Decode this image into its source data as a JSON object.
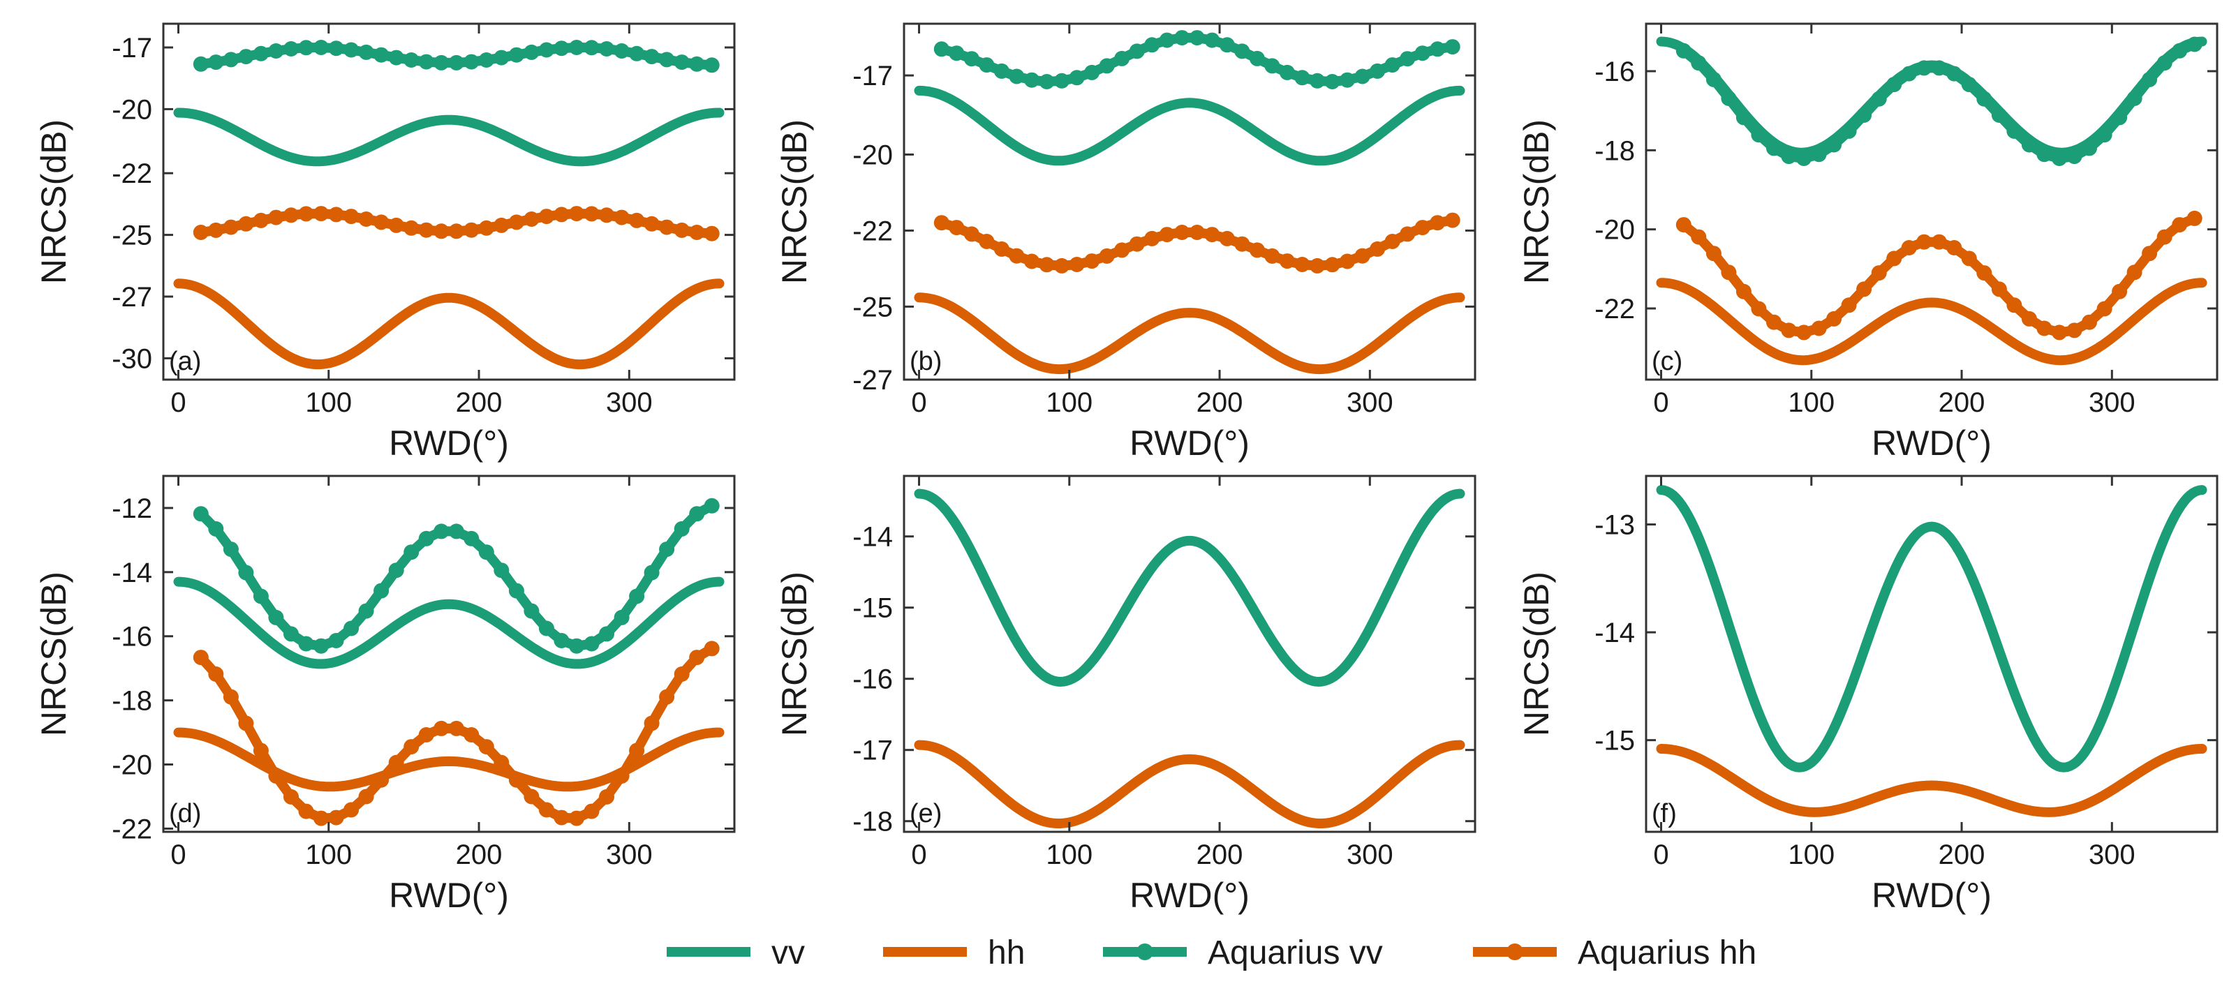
{
  "colors": {
    "vv": "#1b9e77",
    "hh": "#d95f02",
    "axis": "#333333"
  },
  "legend": [
    {
      "key": "vv",
      "label": "vv",
      "markers": false
    },
    {
      "key": "hh",
      "label": "hh",
      "markers": false
    },
    {
      "key": "aq_vv",
      "label": "Aquarius vv",
      "markers": true
    },
    {
      "key": "aq_hh",
      "label": "Aquarius hh",
      "markers": true
    }
  ],
  "chart_data": [
    {
      "id": "a",
      "type": "line",
      "panel_label": "(a)",
      "xlabel": "RWD(°)",
      "ylabel": "NRCS(dB)",
      "xlim": [
        -10,
        370
      ],
      "xticks": [
        0,
        100,
        200,
        300
      ],
      "ylim": [
        -31.0,
        -16.0
      ],
      "yticks": [
        {
          "value": -17.0,
          "label": "-17"
        },
        {
          "value": -19.6,
          "label": "-20"
        },
        {
          "value": -22.3,
          "label": "-22"
        },
        {
          "value": -24.9,
          "label": "-25"
        },
        {
          "value": -27.5,
          "label": "-27"
        },
        {
          "value": -30.1,
          "label": "-30"
        }
      ],
      "series": [
        {
          "name": "vv",
          "key": "vv",
          "markers": false,
          "model": {
            "a0": -20.85,
            "a1": 0.15,
            "a2": 0.95
          }
        },
        {
          "name": "hh",
          "key": "hh",
          "markers": false,
          "model": {
            "a0": -28.8,
            "a1": 0.3,
            "a2": 1.55
          }
        },
        {
          "name": "Aquarius vv",
          "key": "aq_vv",
          "markers": true,
          "x_range": [
            15,
            355
          ],
          "n": 35,
          "model": {
            "a0": -17.35,
            "a1": -0.05,
            "a2": -0.35
          }
        },
        {
          "name": "Aquarius hh",
          "key": "aq_hh",
          "markers": true,
          "x_range": [
            15,
            355
          ],
          "n": 35,
          "model": {
            "a0": -24.4,
            "a1": -0.05,
            "a2": -0.4
          }
        }
      ]
    },
    {
      "id": "b",
      "type": "line",
      "panel_label": "(b)",
      "xlabel": "RWD(°)",
      "ylabel": "NRCS(dB)",
      "xlim": [
        -10,
        370
      ],
      "xticks": [
        0,
        100,
        200,
        300
      ],
      "ylim": [
        -27.0,
        -15.3
      ],
      "yticks": [
        {
          "value": -17.0,
          "label": "-17"
        },
        {
          "value": -19.6,
          "label": "-20"
        },
        {
          "value": -22.1,
          "label": "-22"
        },
        {
          "value": -24.6,
          "label": "-25"
        },
        {
          "value": -27.0,
          "label": "-27"
        }
      ],
      "series": [
        {
          "name": "vv",
          "key": "vv",
          "markers": false,
          "model": {
            "a0": -18.75,
            "a1": 0.2,
            "a2": 1.05
          }
        },
        {
          "name": "hh",
          "key": "hh",
          "markers": false,
          "model": {
            "a0": -25.6,
            "a1": 0.25,
            "a2": 1.05
          }
        },
        {
          "name": "Aquarius vv",
          "key": "aq_vv",
          "markers": true,
          "x_range": [
            15,
            355
          ],
          "n": 35,
          "model": {
            "a0": -16.55,
            "a1": -0.15,
            "a2": 0.65
          }
        },
        {
          "name": "Aquarius hh",
          "key": "aq_hh",
          "markers": true,
          "x_range": [
            15,
            355
          ],
          "n": 35,
          "model": {
            "a0": -22.6,
            "a1": 0.2,
            "a2": 0.65
          }
        }
      ]
    },
    {
      "id": "c",
      "type": "line",
      "panel_label": "(c)",
      "xlabel": "RWD(°)",
      "ylabel": "NRCS(dB)",
      "xlim": [
        -10,
        370
      ],
      "xticks": [
        0,
        100,
        200,
        300
      ],
      "ylim": [
        -23.8,
        -14.8
      ],
      "yticks": [
        {
          "value": -16,
          "label": "-16"
        },
        {
          "value": -18,
          "label": "-18"
        },
        {
          "value": -20,
          "label": "-20"
        },
        {
          "value": -22,
          "label": "-22"
        }
      ],
      "series": [
        {
          "name": "vv",
          "key": "vv",
          "markers": false,
          "model": {
            "a0": -16.8,
            "a1": 0.3,
            "a2": 1.25
          }
        },
        {
          "name": "hh",
          "key": "hh",
          "markers": false,
          "model": {
            "a0": -22.45,
            "a1": 0.25,
            "a2": 0.85
          }
        },
        {
          "name": "Aquarius vv",
          "key": "aq_vv",
          "markers": true,
          "x_range": [
            15,
            355
          ],
          "n": 35,
          "model": {
            "a0": -16.9,
            "a1": 0.3,
            "a2": 1.3
          }
        },
        {
          "name": "Aquarius hh",
          "key": "aq_hh",
          "markers": true,
          "x_range": [
            15,
            355
          ],
          "n": 35,
          "model": {
            "a0": -21.3,
            "a1": 0.3,
            "a2": 1.3
          }
        }
      ]
    },
    {
      "id": "d",
      "type": "line",
      "panel_label": "(d)",
      "xlabel": "RWD(°)",
      "ylabel": "NRCS(dB)",
      "xlim": [
        -10,
        370
      ],
      "xticks": [
        0,
        100,
        200,
        300
      ],
      "ylim": [
        -22.1,
        -11.0
      ],
      "yticks": [
        {
          "value": -12,
          "label": "-12"
        },
        {
          "value": -14,
          "label": "-14"
        },
        {
          "value": -16,
          "label": "-16"
        },
        {
          "value": -18,
          "label": "-18"
        },
        {
          "value": -20,
          "label": "-20"
        },
        {
          "value": -22,
          "label": "-22"
        }
      ],
      "series": [
        {
          "name": "vv",
          "key": "vv",
          "markers": false,
          "model": {
            "a0": -15.75,
            "a1": 0.35,
            "a2": 1.1
          }
        },
        {
          "name": "hh",
          "key": "hh",
          "markers": false,
          "model": {
            "a0": -20.05,
            "a1": 0.45,
            "a2": 0.6
          }
        },
        {
          "name": "Aquarius vv",
          "key": "aq_vv",
          "markers": true,
          "x_range": [
            15,
            355
          ],
          "n": 35,
          "model": {
            "a0": -14.3,
            "a1": 0.4,
            "a2": 2.0
          }
        },
        {
          "name": "Aquarius hh",
          "key": "aq_hh",
          "markers": true,
          "x_range": [
            15,
            355
          ],
          "n": 35,
          "model": {
            "a0": -19.6,
            "a1": 1.25,
            "a2": 2.0
          }
        }
      ]
    },
    {
      "id": "e",
      "type": "line",
      "panel_label": "(e)",
      "xlabel": "RWD(°)",
      "ylabel": "NRCS(dB)",
      "xlim": [
        -10,
        370
      ],
      "xticks": [
        0,
        100,
        200,
        300
      ],
      "ylim": [
        -18.15,
        -13.15
      ],
      "yticks": [
        {
          "value": -14,
          "label": "-14"
        },
        {
          "value": -15,
          "label": "-15"
        },
        {
          "value": -16,
          "label": "-16"
        },
        {
          "value": -17,
          "label": "-17"
        },
        {
          "value": -18,
          "label": "-18"
        }
      ],
      "series": [
        {
          "name": "vv",
          "key": "vv",
          "markers": false,
          "model": {
            "a0": -14.88,
            "a1": 0.33,
            "a2": 1.15
          }
        },
        {
          "name": "hh",
          "key": "hh",
          "markers": false,
          "model": {
            "a0": -17.53,
            "a1": 0.1,
            "a2": 0.5
          }
        }
      ]
    },
    {
      "id": "f",
      "type": "line",
      "panel_label": "(f)",
      "xlabel": "RWD(°)",
      "ylabel": "NRCS(dB)",
      "xlim": [
        -10,
        370
      ],
      "xticks": [
        0,
        100,
        200,
        300
      ],
      "ylim": [
        -15.85,
        -12.55
      ],
      "yticks": [
        {
          "value": -13,
          "label": "-13"
        },
        {
          "value": -14,
          "label": "-14"
        },
        {
          "value": -15,
          "label": "-15"
        }
      ],
      "series": [
        {
          "name": "vv",
          "key": "vv",
          "markers": false,
          "model": {
            "a0": -14.05,
            "a1": 0.17,
            "a2": 1.2
          }
        },
        {
          "name": "hh",
          "key": "hh",
          "markers": false,
          "model": {
            "a0": -15.45,
            "a1": 0.17,
            "a2": 0.2
          }
        }
      ]
    }
  ]
}
